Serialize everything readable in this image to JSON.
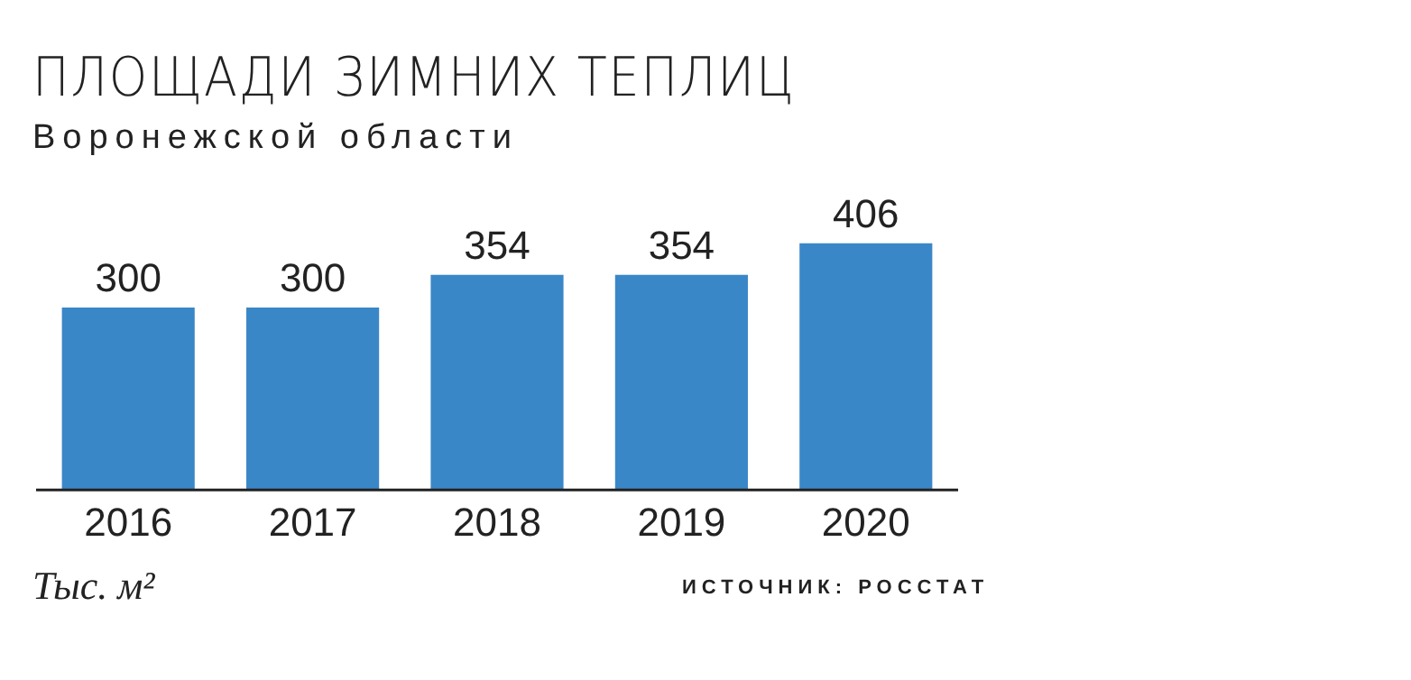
{
  "chart_data": {
    "type": "bar",
    "title": "ПЛОЩАДИ ЗИМНИХ ТЕПЛИЦ",
    "subtitle": "Воронежской области",
    "categories": [
      "2016",
      "2017",
      "2018",
      "2019",
      "2020"
    ],
    "values": [
      300,
      300,
      354,
      354,
      406
    ],
    "color": "#3a87c8",
    "data_labels": true,
    "grid": false,
    "legend": false,
    "annotations": [
      "Тыс. м²",
      "ИСТОЧНИК: РОССТАТ"
    ]
  }
}
